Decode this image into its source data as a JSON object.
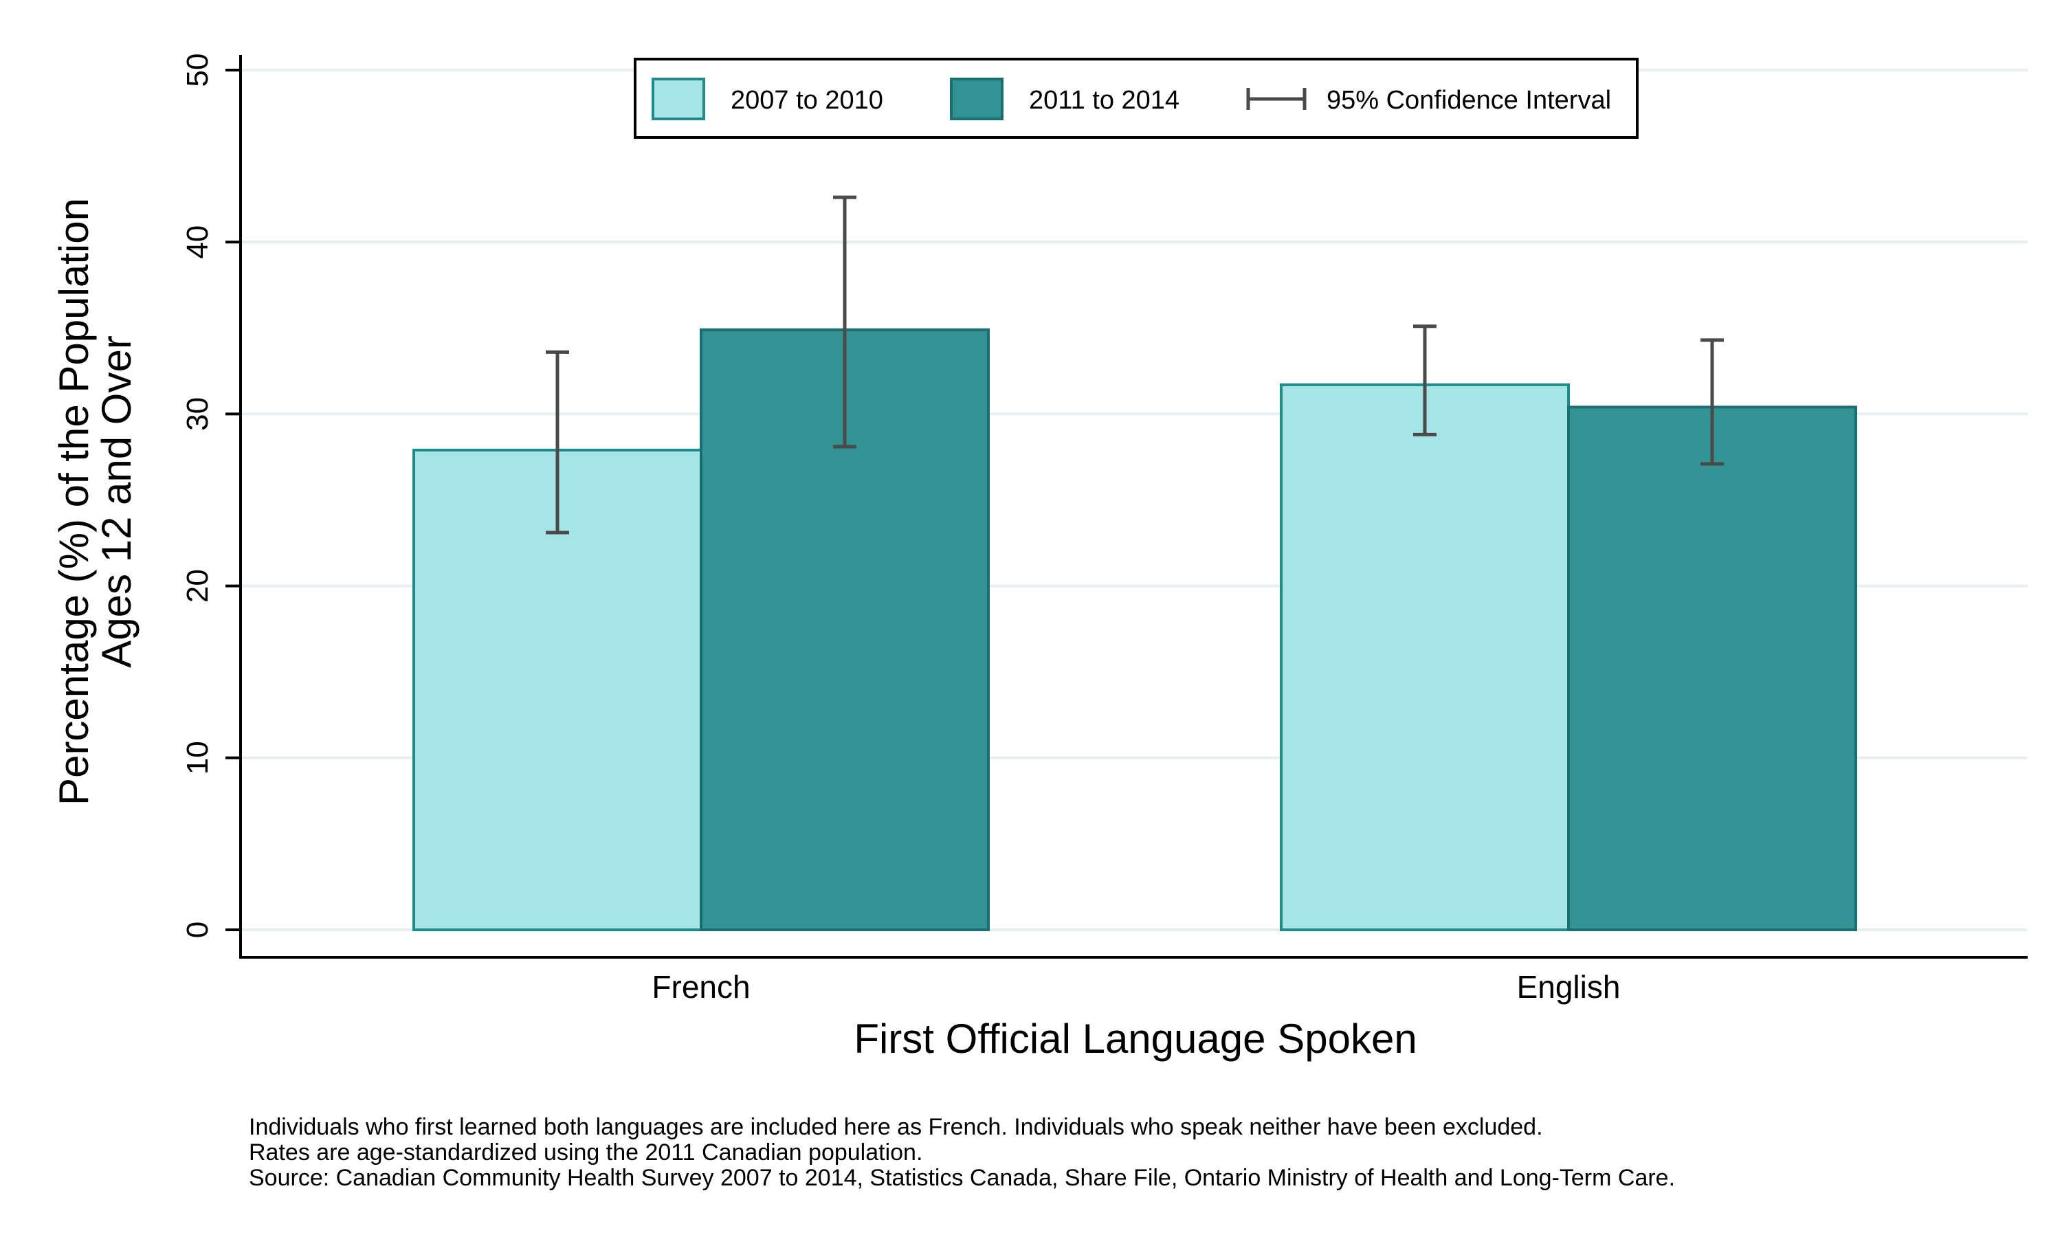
{
  "chart_data": {
    "type": "bar",
    "categories": [
      "French",
      "English"
    ],
    "series": [
      {
        "name": "2007 to 2010",
        "color": "#a7e4e6",
        "edge": "#1f8a8a",
        "values": [
          27.9,
          31.7
        ],
        "ci_low": [
          23.1,
          28.8
        ],
        "ci_high": [
          33.6,
          35.1
        ]
      },
      {
        "name": "2011 to 2014",
        "color": "#339294",
        "edge": "#1a6f71",
        "values": [
          34.9,
          30.4
        ],
        "ci_low": [
          28.1,
          27.1
        ],
        "ci_high": [
          42.6,
          34.3
        ]
      }
    ],
    "legend": {
      "items": [
        "2007 to 2010",
        "2011 to 2014",
        "95% Confidence Interval"
      ],
      "placement": "top-center"
    },
    "xlabel": "First Official Language Spoken",
    "ylabel_lines": [
      "Percentage (%) of the Population",
      "Ages 12 and Over"
    ],
    "ylim": [
      0,
      50
    ],
    "yticks": [
      0,
      10,
      20,
      30,
      40,
      50
    ],
    "grid": true,
    "notes": [
      "Individuals who first learned both languages are included here as French.  Individuals who speak neither have been excluded.",
      "Rates are age-standardized using the 2011 Canadian population.",
      "Source: Canadian Community Health Survey 2007 to 2014, Statistics Canada, Share File, Ontario Ministry of Health and Long-Term Care."
    ]
  }
}
